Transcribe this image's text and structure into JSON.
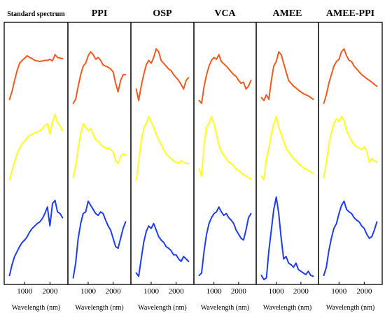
{
  "chart_data": {
    "type": "line",
    "panels": [
      {
        "title": "Standard spectrum",
        "xlabel": "Wavelength (nm)",
        "series": [
          {
            "color": "#f05a1e",
            "x": [
              400,
              500,
              600,
              700,
              800,
              900,
              1000,
              1100,
              1200,
              1300,
              1400,
              1500,
              1600,
              1700,
              1800,
              1900,
              2000,
              2100,
              2200,
              2300,
              2400,
              2500
            ],
            "y": [
              0.12,
              0.26,
              0.45,
              0.62,
              0.75,
              0.8,
              0.84,
              0.88,
              0.85,
              0.83,
              0.8,
              0.79,
              0.78,
              0.79,
              0.8,
              0.8,
              0.82,
              0.79,
              0.9,
              0.85,
              0.84,
              0.83
            ]
          },
          {
            "color": "#ffff1a",
            "x": [
              400,
              500,
              600,
              700,
              800,
              900,
              1000,
              1100,
              1200,
              1300,
              1400,
              1500,
              1600,
              1700,
              1800,
              1900,
              2000,
              2100,
              2200,
              2300,
              2400,
              2500
            ],
            "y": [
              0.05,
              0.18,
              0.3,
              0.42,
              0.5,
              0.56,
              0.6,
              0.65,
              0.68,
              0.7,
              0.72,
              0.73,
              0.75,
              0.78,
              0.82,
              0.85,
              0.7,
              0.88,
              0.98,
              0.86,
              0.82,
              0.75
            ]
          },
          {
            "color": "#1e3cf0",
            "x": [
              400,
              500,
              600,
              700,
              800,
              900,
              1000,
              1100,
              1200,
              1300,
              1400,
              1500,
              1600,
              1700,
              1800,
              1900,
              2000,
              2100,
              2200,
              2300,
              2400,
              2500
            ],
            "y": [
              0.05,
              0.18,
              0.28,
              0.34,
              0.4,
              0.45,
              0.48,
              0.52,
              0.58,
              0.62,
              0.65,
              0.68,
              0.7,
              0.74,
              0.8,
              0.88,
              0.65,
              0.92,
              0.96,
              0.82,
              0.8,
              0.75
            ]
          }
        ]
      },
      {
        "title": "PPI",
        "xlabel": "Wavelength (nm)",
        "series": [
          {
            "color": "#f05a1e",
            "x": [
              400,
              500,
              600,
              700,
              800,
              900,
              1000,
              1100,
              1200,
              1300,
              1400,
              1500,
              1600,
              1700,
              1800,
              1900,
              2000,
              2100,
              2200,
              2300,
              2400,
              2500
            ],
            "y": [
              0.05,
              0.12,
              0.35,
              0.55,
              0.7,
              0.75,
              0.88,
              0.95,
              0.9,
              0.82,
              0.85,
              0.8,
              0.72,
              0.7,
              0.68,
              0.65,
              0.6,
              0.4,
              0.25,
              0.45,
              0.55,
              0.55
            ]
          },
          {
            "color": "#ffff1a",
            "x": [
              400,
              500,
              600,
              700,
              800,
              900,
              1000,
              1100,
              1200,
              1300,
              1400,
              1500,
              1600,
              1700,
              1800,
              1900,
              2000,
              2100,
              2200,
              2300,
              2400,
              2500
            ],
            "y": [
              0.08,
              0.25,
              0.5,
              0.7,
              0.85,
              0.8,
              0.75,
              0.78,
              0.7,
              0.62,
              0.6,
              0.55,
              0.52,
              0.5,
              0.5,
              0.48,
              0.45,
              0.32,
              0.28,
              0.38,
              0.42,
              0.4
            ]
          },
          {
            "color": "#1e3cf0",
            "x": [
              400,
              500,
              600,
              700,
              800,
              900,
              1000,
              1100,
              1200,
              1300,
              1400,
              1500,
              1600,
              1700,
              1800,
              1900,
              2000,
              2100,
              2200,
              2300,
              2400,
              2500
            ],
            "y": [
              0.02,
              0.2,
              0.5,
              0.68,
              0.8,
              0.82,
              0.95,
              0.9,
              0.85,
              0.8,
              0.78,
              0.82,
              0.8,
              0.72,
              0.65,
              0.6,
              0.5,
              0.4,
              0.38,
              0.5,
              0.62,
              0.7
            ]
          }
        ]
      },
      {
        "title": "OSP",
        "xlabel": "Wavelength (nm)",
        "series": [
          {
            "color": "#f05a1e",
            "x": [
              400,
              500,
              600,
              700,
              800,
              900,
              1000,
              1100,
              1200,
              1300,
              1400,
              1500,
              1600,
              1700,
              1800,
              1900,
              2000,
              2100,
              2200,
              2300,
              2400,
              2500
            ],
            "y": [
              0.3,
              0.1,
              0.35,
              0.55,
              0.72,
              0.8,
              0.75,
              0.85,
              1.0,
              0.95,
              0.8,
              0.75,
              0.7,
              0.65,
              0.62,
              0.55,
              0.5,
              0.45,
              0.38,
              0.3,
              0.45,
              0.5
            ]
          },
          {
            "color": "#ffff1a",
            "x": [
              400,
              500,
              600,
              700,
              800,
              900,
              1000,
              1100,
              1200,
              1300,
              1400,
              1500,
              1600,
              1700,
              1800,
              1900,
              2000,
              2100,
              2200,
              2300,
              2400,
              2500
            ],
            "y": [
              0.05,
              0.3,
              0.6,
              0.78,
              0.85,
              0.95,
              0.88,
              0.8,
              0.7,
              0.62,
              0.55,
              0.48,
              0.42,
              0.38,
              0.35,
              0.32,
              0.3,
              0.28,
              0.32,
              0.3,
              0.28,
              0.28
            ]
          },
          {
            "color": "#1e3cf0",
            "x": [
              400,
              500,
              600,
              700,
              800,
              900,
              1000,
              1100,
              1200,
              1300,
              1400,
              1500,
              1600,
              1700,
              1800,
              1900,
              2000,
              2100,
              2200,
              2300,
              2400,
              2500
            ],
            "y": [
              0.08,
              0.04,
              0.25,
              0.45,
              0.58,
              0.65,
              0.62,
              0.68,
              0.6,
              0.52,
              0.48,
              0.45,
              0.4,
              0.38,
              0.35,
              0.3,
              0.3,
              0.25,
              0.22,
              0.28,
              0.25,
              0.22
            ]
          }
        ]
      },
      {
        "title": "VCA",
        "xlabel": "Wavelength (nm)",
        "series": [
          {
            "color": "#f05a1e",
            "x": [
              400,
              500,
              600,
              700,
              800,
              900,
              1000,
              1100,
              1200,
              1300,
              1400,
              1500,
              1600,
              1700,
              1800,
              1900,
              2000,
              2100,
              2200,
              2300,
              2400,
              2500
            ],
            "y": [
              0.1,
              0.05,
              0.35,
              0.55,
              0.7,
              0.8,
              0.85,
              0.82,
              0.9,
              0.78,
              0.74,
              0.7,
              0.65,
              0.6,
              0.55,
              0.52,
              0.45,
              0.4,
              0.42,
              0.3,
              0.35,
              0.45
            ]
          },
          {
            "color": "#ffff1a",
            "x": [
              400,
              500,
              600,
              700,
              800,
              900,
              1000,
              1100,
              1200,
              1300,
              1400,
              1500,
              1600,
              1700,
              1800,
              1900,
              2000,
              2100,
              2200,
              2300,
              2400,
              2500
            ],
            "y": [
              0.2,
              0.1,
              0.55,
              0.8,
              0.85,
              0.95,
              0.85,
              0.7,
              0.55,
              0.45,
              0.4,
              0.35,
              0.3,
              0.28,
              0.25,
              0.2,
              0.18,
              0.15,
              0.12,
              0.1,
              0.08,
              0.06
            ]
          },
          {
            "color": "#1e3cf0",
            "x": [
              400,
              500,
              600,
              700,
              800,
              900,
              1000,
              1100,
              1200,
              1300,
              1400,
              1500,
              1600,
              1700,
              1800,
              1900,
              2000,
              2100,
              2200,
              2300,
              2400,
              2500
            ],
            "y": [
              0.05,
              0.08,
              0.35,
              0.55,
              0.68,
              0.75,
              0.8,
              0.82,
              0.88,
              0.82,
              0.78,
              0.8,
              0.75,
              0.72,
              0.68,
              0.6,
              0.55,
              0.5,
              0.48,
              0.6,
              0.75,
              0.8
            ]
          }
        ]
      },
      {
        "title": "AMEE",
        "xlabel": "Wavelength (nm)",
        "series": [
          {
            "color": "#f05a1e",
            "x": [
              400,
              500,
              600,
              700,
              800,
              900,
              1000,
              1100,
              1200,
              1300,
              1400,
              1500,
              1600,
              1700,
              1800,
              1900,
              2000,
              2100,
              2200,
              2300,
              2400,
              2500
            ],
            "y": [
              0.15,
              0.1,
              0.2,
              0.12,
              0.45,
              0.7,
              0.78,
              0.95,
              0.9,
              0.75,
              0.6,
              0.45,
              0.4,
              0.35,
              0.32,
              0.28,
              0.25,
              0.22,
              0.2,
              0.18,
              0.15,
              0.12
            ]
          },
          {
            "color": "#ffff1a",
            "x": [
              400,
              500,
              600,
              700,
              800,
              900,
              1000,
              1100,
              1200,
              1300,
              1400,
              1500,
              1600,
              1700,
              1800,
              1900,
              2000,
              2100,
              2200,
              2300,
              2400,
              2500
            ],
            "y": [
              0.1,
              0.05,
              0.35,
              0.5,
              0.7,
              0.85,
              0.95,
              0.8,
              0.7,
              0.6,
              0.5,
              0.45,
              0.4,
              0.35,
              0.32,
              0.28,
              0.25,
              0.22,
              0.2,
              0.18,
              0.16,
              0.14
            ]
          },
          {
            "color": "#1e3cf0",
            "x": [
              400,
              500,
              600,
              700,
              800,
              900,
              1000,
              1100,
              1200,
              1300,
              1400,
              1500,
              1600,
              1700,
              1800,
              1900,
              2000,
              2100,
              2200,
              2300,
              2400,
              2500
            ],
            "y": [
              0.05,
              0.0,
              0.02,
              0.35,
              0.6,
              0.85,
              1.0,
              0.8,
              0.5,
              0.25,
              0.28,
              0.2,
              0.18,
              0.15,
              0.2,
              0.12,
              0.1,
              0.08,
              0.06,
              0.1,
              0.05,
              0.04
            ]
          }
        ]
      },
      {
        "title": "AMEE-PPI",
        "xlabel": "Wavelength (nm)",
        "series": [
          {
            "color": "#f05a1e",
            "x": [
              400,
              500,
              600,
              700,
              800,
              900,
              1000,
              1100,
              1200,
              1300,
              1400,
              1500,
              1600,
              1700,
              1800,
              1900,
              2000,
              2100,
              2200,
              2300,
              2400,
              2500
            ],
            "y": [
              0.05,
              0.2,
              0.4,
              0.55,
              0.7,
              0.78,
              0.82,
              0.95,
              1.0,
              0.88,
              0.8,
              0.78,
              0.7,
              0.65,
              0.6,
              0.55,
              0.52,
              0.48,
              0.45,
              0.42,
              0.38,
              0.35
            ]
          },
          {
            "color": "#ffff1a",
            "x": [
              400,
              500,
              600,
              700,
              800,
              900,
              1000,
              1100,
              1200,
              1300,
              1400,
              1500,
              1600,
              1700,
              1800,
              1900,
              2000,
              2100,
              2200,
              2300,
              2400,
              2500
            ],
            "y": [
              0.08,
              0.3,
              0.55,
              0.72,
              0.85,
              0.92,
              0.88,
              0.95,
              0.9,
              0.75,
              0.68,
              0.6,
              0.55,
              0.52,
              0.5,
              0.48,
              0.52,
              0.45,
              0.3,
              0.35,
              0.32,
              0.3
            ]
          },
          {
            "color": "#1e3cf0",
            "x": [
              400,
              500,
              600,
              700,
              800,
              900,
              1000,
              1100,
              1200,
              1300,
              1400,
              1500,
              1600,
              1700,
              1800,
              1900,
              2000,
              2100,
              2200,
              2300,
              2400,
              2500
            ],
            "y": [
              0.05,
              0.15,
              0.35,
              0.5,
              0.62,
              0.68,
              0.8,
              0.9,
              0.95,
              0.85,
              0.82,
              0.8,
              0.75,
              0.72,
              0.7,
              0.65,
              0.62,
              0.55,
              0.5,
              0.52,
              0.6,
              0.7
            ]
          }
        ]
      }
    ],
    "xlim": [
      300,
      2600
    ],
    "xticks": [
      1000,
      2000
    ],
    "grid": false
  }
}
